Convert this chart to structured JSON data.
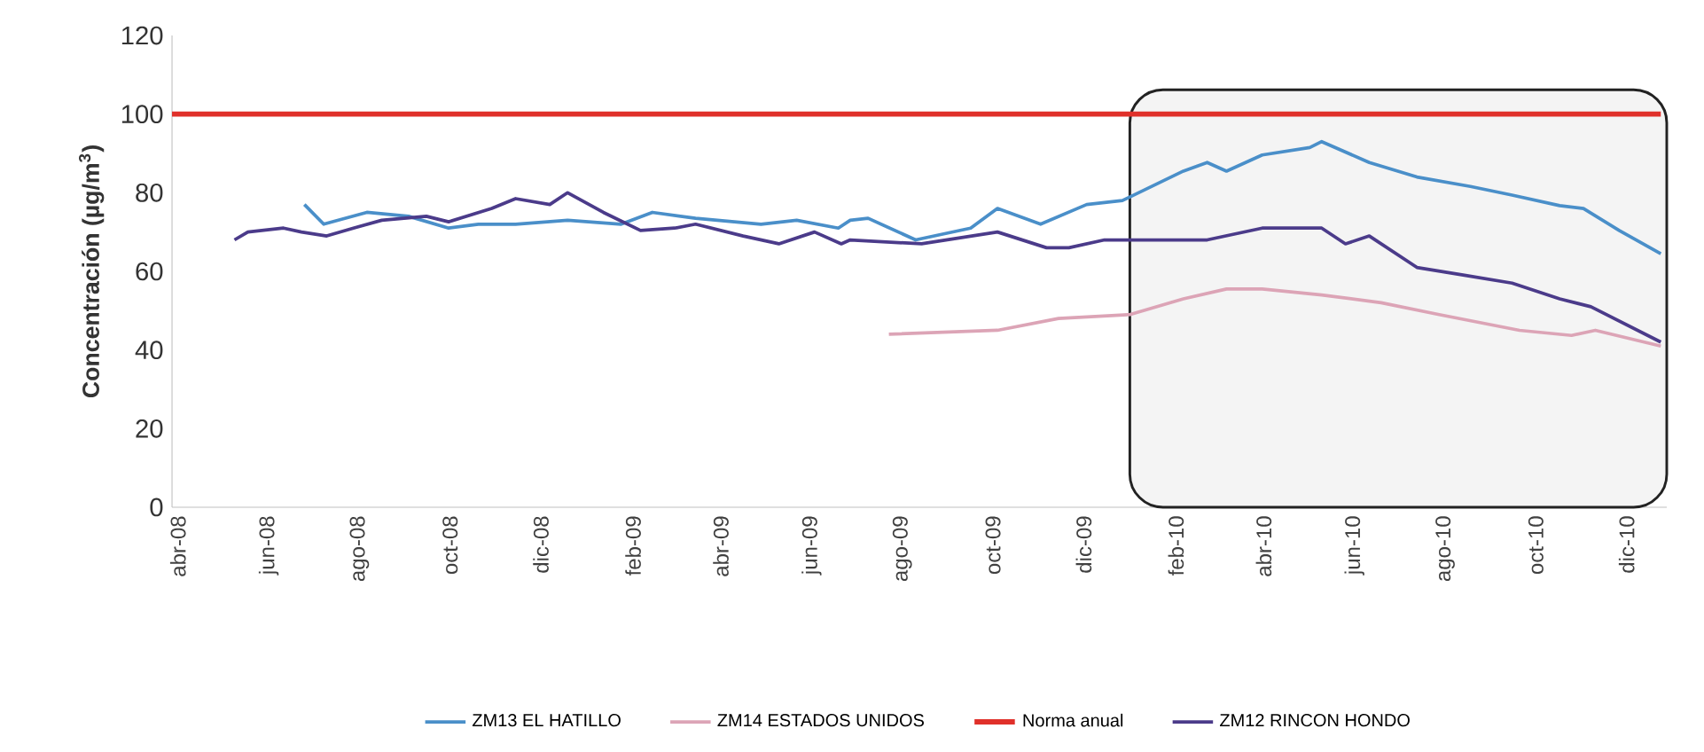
{
  "chart_data": {
    "type": "line",
    "ylabel": "Concentración (µg/m$^{3}$)",
    "xlim": [
      "2008-03-28",
      "2010-12-28"
    ],
    "ylim": [
      0,
      120
    ],
    "yticks": [
      0,
      20,
      40,
      60,
      80,
      100,
      120
    ],
    "xticks": [
      {
        "value": "2008-04",
        "label": "abr-08"
      },
      {
        "value": "2008-06",
        "label": "jun-08"
      },
      {
        "value": "2008-08",
        "label": "ago-08"
      },
      {
        "value": "2008-10",
        "label": "oct-08"
      },
      {
        "value": "2008-12",
        "label": "dic-08"
      },
      {
        "value": "2009-02",
        "label": "feb-09"
      },
      {
        "value": "2009-04",
        "label": "abr-09"
      },
      {
        "value": "2009-06",
        "label": "jun-09"
      },
      {
        "value": "2009-08",
        "label": "ago-09"
      },
      {
        "value": "2009-10",
        "label": "oct-09"
      },
      {
        "value": "2009-12",
        "label": "dic-09"
      },
      {
        "value": "2010-02",
        "label": "feb-10"
      },
      {
        "value": "2010-04",
        "label": "abr-10"
      },
      {
        "value": "2010-06",
        "label": "jun-10"
      },
      {
        "value": "2010-08",
        "label": "ago-10"
      },
      {
        "value": "2010-10",
        "label": "oct-10"
      },
      {
        "value": "2010-12",
        "label": "dic-10"
      }
    ],
    "grid": false,
    "legend": "bottom",
    "marker": "none",
    "line_style": "solid",
    "series": [
      {
        "name": "ZM13 EL HATILLO",
        "color": "#4a8fc9",
        "x": [
          "2008-06-25",
          "2008-07-08",
          "2008-08-06",
          "2008-09-03",
          "2008-09-30",
          "2008-10-20",
          "2008-11-14",
          "2008-12-19",
          "2009-01-24",
          "2009-02-14",
          "2009-03-15",
          "2009-04-28",
          "2009-05-22",
          "2009-06-19",
          "2009-06-27",
          "2009-07-09",
          "2009-08-10",
          "2009-09-16",
          "2009-10-04",
          "2009-11-02",
          "2009-12-03",
          "2009-12-27",
          "2010-02-06",
          "2010-02-22",
          "2010-03-07",
          "2010-03-31",
          "2010-05-02",
          "2010-05-10",
          "2010-06-11",
          "2010-07-13",
          "2010-08-18",
          "2010-09-15",
          "2010-10-17",
          "2010-11-02",
          "2010-11-26",
          "2010-12-24"
        ],
        "values": [
          77,
          72,
          75,
          74,
          71,
          72,
          72,
          73,
          72,
          75,
          73.5,
          72,
          73,
          71,
          73,
          73.5,
          68,
          71,
          76,
          72,
          77,
          78,
          85.5,
          87.7,
          85.5,
          89.6,
          91.5,
          93,
          87.7,
          84,
          81.6,
          79.4,
          76.7,
          76,
          70.4,
          64.5
        ]
      },
      {
        "name": "ZM14 ESTADOS UNIDOS",
        "color": "#dca4b6",
        "x": [
          "2009-07-23",
          "2009-10-04",
          "2009-11-14",
          "2010-01-01",
          "2010-02-06",
          "2010-03-07",
          "2010-03-31",
          "2010-05-10",
          "2010-06-19",
          "2010-07-28",
          "2010-09-20",
          "2010-10-25",
          "2010-11-10",
          "2010-12-24"
        ],
        "values": [
          44,
          45,
          48,
          49,
          53,
          55.5,
          55.5,
          54,
          52,
          49,
          45,
          43.7,
          45,
          41
        ]
      },
      {
        "name": "Norma anual",
        "color": "#e0302a",
        "x": [
          "2008-03-28",
          "2010-12-24"
        ],
        "values": [
          100,
          100
        ]
      },
      {
        "name": "ZM12 RINCON HONDO",
        "color": "#4b3b8a",
        "x": [
          "2008-05-09",
          "2008-05-18",
          "2008-06-11",
          "2008-06-23",
          "2008-07-10",
          "2008-07-28",
          "2008-08-16",
          "2008-09-15",
          "2008-09-30",
          "2008-10-29",
          "2008-11-14",
          "2008-12-07",
          "2008-12-19",
          "2009-01-12",
          "2009-02-06",
          "2009-03-01",
          "2009-03-15",
          "2009-04-16",
          "2009-05-10",
          "2009-06-03",
          "2009-06-21",
          "2009-06-27",
          "2009-08-14",
          "2009-10-04",
          "2009-11-06",
          "2009-11-21",
          "2009-12-15",
          "2010-02-22",
          "2010-03-31",
          "2010-05-10",
          "2010-05-26",
          "2010-06-11",
          "2010-07-13",
          "2010-08-14",
          "2010-09-15",
          "2010-10-17",
          "2010-11-07",
          "2010-12-24"
        ],
        "values": [
          68,
          70,
          71,
          70,
          69,
          71,
          73,
          74,
          72.6,
          76,
          78.5,
          77,
          80,
          75,
          70.4,
          71,
          72,
          69,
          67,
          70,
          67,
          68,
          67,
          70,
          66,
          66,
          68,
          68,
          71,
          71,
          67,
          69,
          61,
          59,
          57,
          53,
          51,
          42
        ]
      }
    ],
    "bands": [
      {
        "axis": "x",
        "from": "2010-01-01",
        "to": "2010-12-28",
        "color": "#222222"
      }
    ]
  }
}
